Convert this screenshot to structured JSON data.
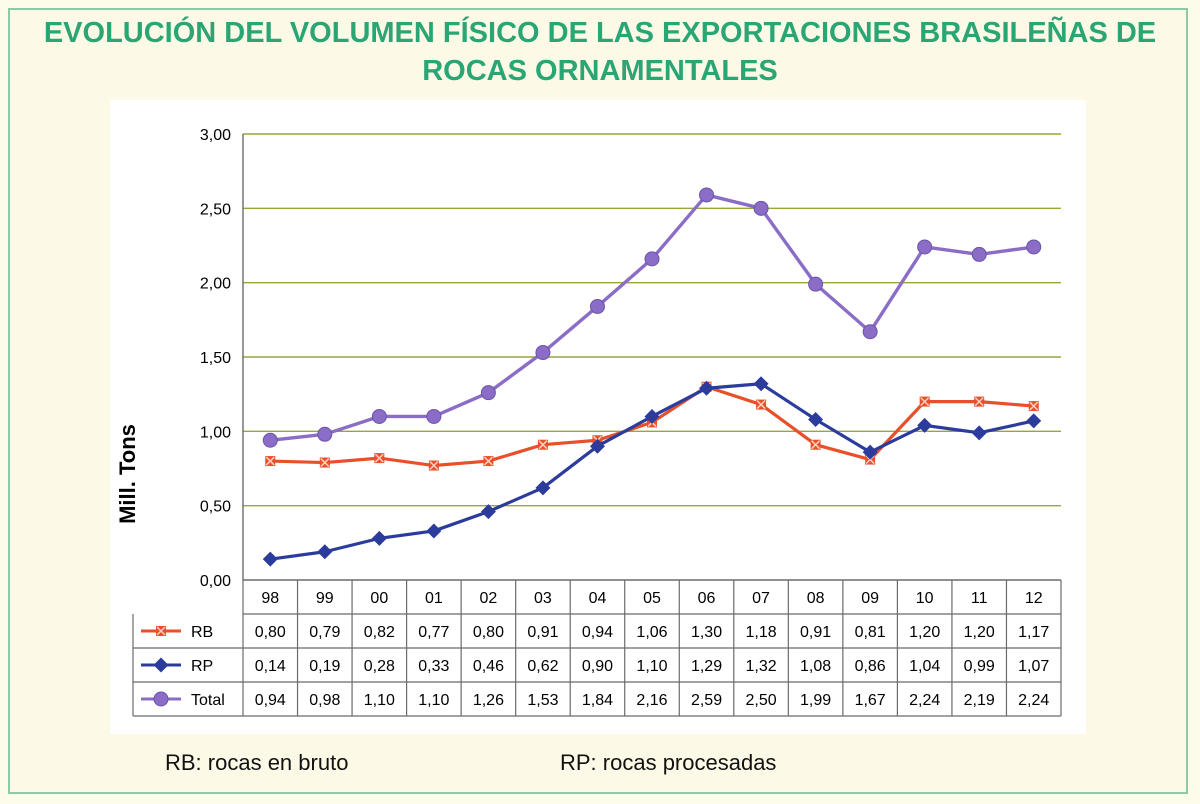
{
  "title_line1": "EVOLUCIÓN DEL VOLUMEN FÍSICO DE LAS EXPORTACIONES BRASILEÑAS DE",
  "title_line2": "ROCAS ORNAMENTALES",
  "footnotes": {
    "rb": "RB: rocas en bruto",
    "rp": "RP: rocas procesadas"
  },
  "colors": {
    "title": "#2aa574",
    "RB": "#e8502a",
    "RP": "#2c3c9c",
    "Total": "#8b6cc6",
    "grid": "#9aa53c"
  },
  "chart_data": {
    "type": "line",
    "title": "EVOLUCIÓN DEL VOLUMEN FÍSICO DE LAS EXPORTACIONES BRASILEÑAS DE ROCAS ORNAMENTALES",
    "xlabel": "",
    "ylabel": "Mill. Tons",
    "categories": [
      "98",
      "99",
      "00",
      "01",
      "02",
      "03",
      "04",
      "05",
      "06",
      "07",
      "08",
      "09",
      "10",
      "11",
      "12"
    ],
    "ylim": [
      0,
      3
    ],
    "yticks": [
      "0,00",
      "0,50",
      "1,00",
      "1,50",
      "2,00",
      "2,50",
      "3,00"
    ],
    "grid": true,
    "legend": "data-table",
    "series": [
      {
        "name": "RB",
        "marker": "x-square",
        "values": [
          0.8,
          0.79,
          0.82,
          0.77,
          0.8,
          0.91,
          0.94,
          1.06,
          1.3,
          1.18,
          0.91,
          0.81,
          1.2,
          1.2,
          1.17
        ],
        "labels": [
          "0,80",
          "0,79",
          "0,82",
          "0,77",
          "0,80",
          "0,91",
          "0,94",
          "1,06",
          "1,30",
          "1,18",
          "0,91",
          "0,81",
          "1,20",
          "1,20",
          "1,17"
        ]
      },
      {
        "name": "RP",
        "marker": "diamond",
        "values": [
          0.14,
          0.19,
          0.28,
          0.33,
          0.46,
          0.62,
          0.9,
          1.1,
          1.29,
          1.32,
          1.08,
          0.86,
          1.04,
          0.99,
          1.07
        ],
        "labels": [
          "0,14",
          "0,19",
          "0,28",
          "0,33",
          "0,46",
          "0,62",
          "0,90",
          "1,10",
          "1,29",
          "1,32",
          "1,08",
          "0,86",
          "1,04",
          "0,99",
          "1,07"
        ]
      },
      {
        "name": "Total",
        "marker": "circle",
        "values": [
          0.94,
          0.98,
          1.1,
          1.1,
          1.26,
          1.53,
          1.84,
          2.16,
          2.59,
          2.5,
          1.99,
          1.67,
          2.24,
          2.19,
          2.24
        ],
        "labels": [
          "0,94",
          "0,98",
          "1,10",
          "1,10",
          "1,26",
          "1,53",
          "1,84",
          "2,16",
          "2,59",
          "2,50",
          "1,99",
          "1,67",
          "2,24",
          "2,19",
          "2,24"
        ]
      }
    ]
  }
}
